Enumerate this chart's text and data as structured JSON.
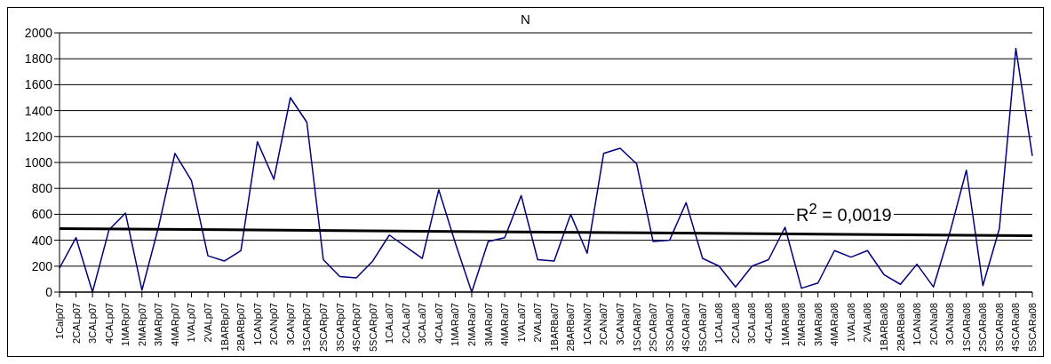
{
  "chart_data": {
    "type": "line",
    "title": "N",
    "categories": [
      "1Calp07",
      "2CALp07",
      "3CALp07",
      "4CALp07",
      "1MARp07",
      "2MARp07",
      "3MARp07",
      "4MARp07",
      "1VALp07",
      "2VALp07",
      "1BARBp07",
      "2BARBp07",
      "1CANp07",
      "2CANp07",
      "3CANp07",
      "1SCARp07",
      "2SCARp07",
      "3SCARp07",
      "4SCARp07",
      "5SCARp07",
      "1CALa07",
      "2CALa07",
      "3CALa07",
      "4CALa07",
      "1MARa07",
      "2MARa07",
      "3MARa07",
      "4MARa07",
      "1VALa07",
      "2VALa07",
      "1BARBa07",
      "2BARBa07",
      "1CANa07",
      "2CANa07",
      "3CANa07",
      "1SCARa07",
      "2SCARa07",
      "3SCARa07",
      "4SCARa07",
      "5SCARa07",
      "1CALa08",
      "2CALa08",
      "3CALa08",
      "4CALa08",
      "1MARa08",
      "2MARa08",
      "3MARa08",
      "4MARa08",
      "1VALa08",
      "2VALa08",
      "1BARBa08",
      "2BARBa08",
      "1CANa08",
      "2CANa08",
      "3CANa08",
      "1SCARa08",
      "2SCARa08",
      "3SCARa08",
      "4SCARa08",
      "5SCARa08"
    ],
    "series": [
      {
        "color": "#000080",
        "values": [
          185,
          420,
          0,
          480,
          610,
          15,
          500,
          1070,
          860,
          280,
          240,
          320,
          1160,
          870,
          1500,
          1310,
          250,
          120,
          110,
          240,
          440,
          350,
          260,
          790,
          380,
          0,
          390,
          420,
          745,
          250,
          240,
          600,
          300,
          1070,
          1110,
          990,
          390,
          400,
          690,
          260,
          200,
          40,
          200,
          250,
          500,
          30,
          70,
          320,
          270,
          320,
          135,
          60,
          215,
          40,
          460,
          940,
          50,
          490,
          1880,
          1050
        ]
      },
      {
        "type": "line",
        "color": "#000000",
        "x": [
          "1Calp07",
          "5SCARa08"
        ],
        "values": [
          490,
          435
        ]
      }
    ],
    "ylim": [
      0,
      2000
    ],
    "yticks": [
      0,
      200,
      400,
      600,
      800,
      1000,
      1200,
      1400,
      1600,
      1800,
      2000
    ],
    "grid": "y",
    "marker": "none",
    "line_style": "solid",
    "annotations": [
      "R$^{2}$ = 0,0019"
    ]
  }
}
